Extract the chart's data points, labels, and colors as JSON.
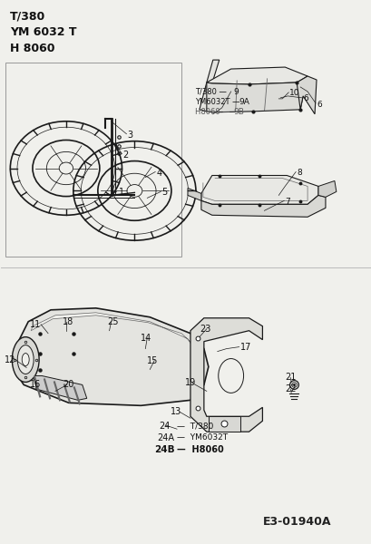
{
  "bg_color": "#f0f0ec",
  "white": "#ffffff",
  "dark": "#1a1a1a",
  "gray": "#666666",
  "lgray": "#d8d8d4",
  "title_lines": [
    "T/380",
    "YM 6032 T",
    "H 8060"
  ],
  "code": "E3-01940A"
}
